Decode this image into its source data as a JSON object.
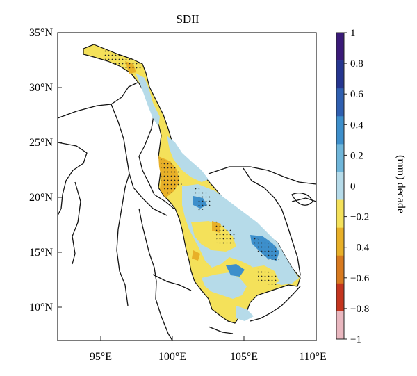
{
  "title": "SDII",
  "lat_ticks": [
    "35°N",
    "30°N",
    "25°N",
    "20°N",
    "15°N",
    "10°N"
  ],
  "lon_ticks": [
    "95°E",
    "100°E",
    "105°E",
    "110°E"
  ],
  "extent": {
    "lon": [
      92,
      110
    ],
    "lat": [
      7,
      35
    ]
  },
  "colorbar": {
    "title": "(mm) decade",
    "tick_labels": [
      "1",
      "0.8",
      "0.6",
      "0.4",
      "0.2",
      "0",
      "−0.2",
      "−0.4",
      "−0.6",
      "−0.8",
      "−1"
    ],
    "colors": [
      "#3a1a78",
      "#25358f",
      "#2f5fb0",
      "#3d8fcb",
      "#6fb6da",
      "#b6dbe9",
      "#f4e15a",
      "#e8b028",
      "#d87a1f",
      "#c4351f",
      "#e9b7bf"
    ]
  }
}
